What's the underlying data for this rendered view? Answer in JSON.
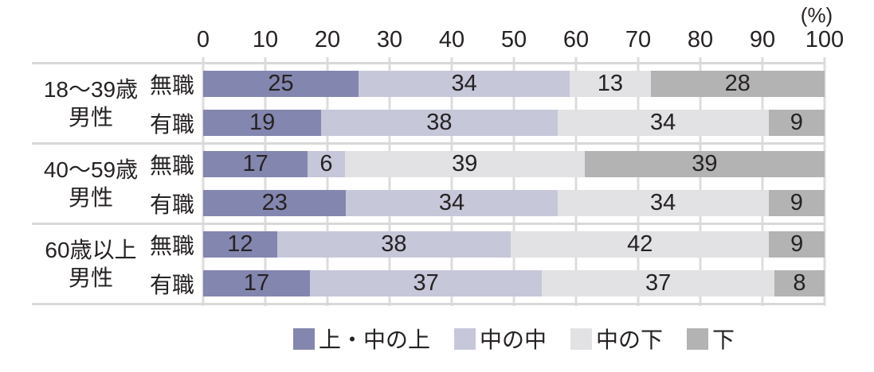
{
  "unit_label": "(%)",
  "axis": {
    "min": 0,
    "max": 100,
    "tick_step": 10,
    "ticks": [
      "0",
      "10",
      "20",
      "30",
      "40",
      "50",
      "60",
      "70",
      "80",
      "90",
      "100"
    ]
  },
  "chart_data": {
    "type": "bar",
    "orientation": "horizontal-stacked",
    "xlim": [
      0,
      100
    ],
    "grid": true,
    "series_names": [
      "上・中の上",
      "中の中",
      "中の下",
      "下"
    ],
    "series_colors": [
      "#8386af",
      "#c6c7d9",
      "#e2e2e4",
      "#b4b3b4"
    ],
    "groups": [
      {
        "label_lines": [
          "18〜39歳",
          "男性"
        ],
        "rows": [
          {
            "label": "無職",
            "values": [
              25,
              34,
              13,
              28
            ]
          },
          {
            "label": "有職",
            "values": [
              19,
              38,
              34,
              9
            ]
          }
        ]
      },
      {
        "label_lines": [
          "40〜59歳",
          "男性"
        ],
        "rows": [
          {
            "label": "無職",
            "values": [
              17,
              6,
              39,
              39
            ]
          },
          {
            "label": "有職",
            "values": [
              23,
              34,
              34,
              9
            ]
          }
        ]
      },
      {
        "label_lines": [
          "60歳以上",
          "男性"
        ],
        "rows": [
          {
            "label": "無職",
            "values": [
              12,
              38,
              42,
              9
            ]
          },
          {
            "label": "有職",
            "values": [
              17,
              37,
              37,
              8
            ]
          }
        ]
      }
    ]
  },
  "legend": {
    "items": [
      {
        "label": "上・中の上",
        "color": "#8386af"
      },
      {
        "label": "中の中",
        "color": "#c6c7d9"
      },
      {
        "label": "中の下",
        "color": "#e2e2e4"
      },
      {
        "label": "下",
        "color": "#b4b3b4"
      }
    ]
  },
  "style": {
    "gridline_color": "#dcdcdc",
    "group_border_color": "#d9d9d9",
    "text_color": "#262223"
  }
}
